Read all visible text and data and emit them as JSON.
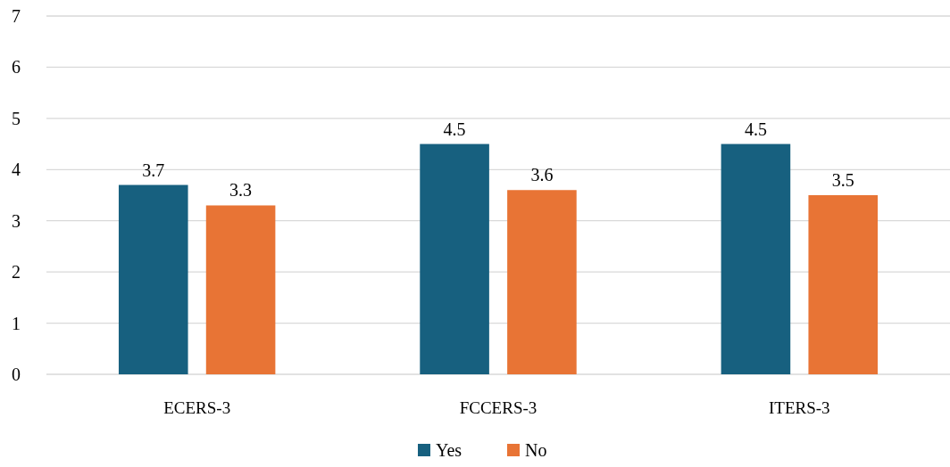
{
  "chart_data": {
    "type": "bar",
    "categories": [
      "ECERS-3",
      "FCCERS-3",
      "ITERS-3"
    ],
    "series": [
      {
        "name": "Yes",
        "color": "#17607f",
        "values": [
          3.7,
          4.5,
          4.5
        ]
      },
      {
        "name": "No",
        "color": "#e87435",
        "values": [
          3.3,
          3.6,
          3.5
        ]
      }
    ],
    "ylim": [
      0,
      7
    ],
    "yticks": [
      0,
      1,
      2,
      3,
      4,
      5,
      6,
      7
    ],
    "grid": "y",
    "legend": "bottom",
    "data_labels": true
  }
}
